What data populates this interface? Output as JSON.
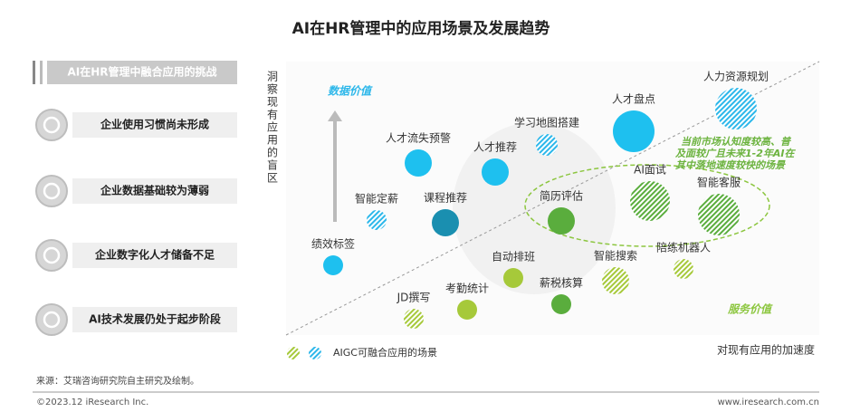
{
  "title": "AI在HR管理中的应用场景及发展趋势",
  "challenges": {
    "title": "AI在HR管理中融合应用的挑战",
    "items": [
      "企业使用习惯尚未形成",
      "企业数据基础较为薄弱",
      "企业数字化人才储备不足",
      "AI技术发展仍处于起步阶段"
    ]
  },
  "matrix": {
    "y_axis_label": "洞察现有应用的盲区",
    "x_axis_label": "对现有应用的加速度",
    "zone_labels": [
      "数据价值",
      "服务价值"
    ],
    "annotation": [
      "当前市场认知度较高、普",
      "及面较广且未来1-2年AI在",
      "其中落地速度较快的场景"
    ],
    "legend": "AIGC可融合应用的场景",
    "scenes": [
      "绩效标签",
      "智能定薪",
      "人才流失预警",
      "课程推荐",
      "人才推荐",
      "学习地图搭建",
      "人才盘点",
      "人力资源规划",
      "AI面试",
      "智能客服",
      "简历评估",
      "陪练机器人",
      "智能搜索",
      "自动排班",
      "薪税核算",
      "考勤统计",
      "JD撰写"
    ]
  },
  "footer": {
    "source": "来源：艾瑞咨询研究院自主研究及绘制。",
    "copyright": "©2023.12 iResearch Inc.",
    "website": "www.iresearch.com.cn"
  }
}
